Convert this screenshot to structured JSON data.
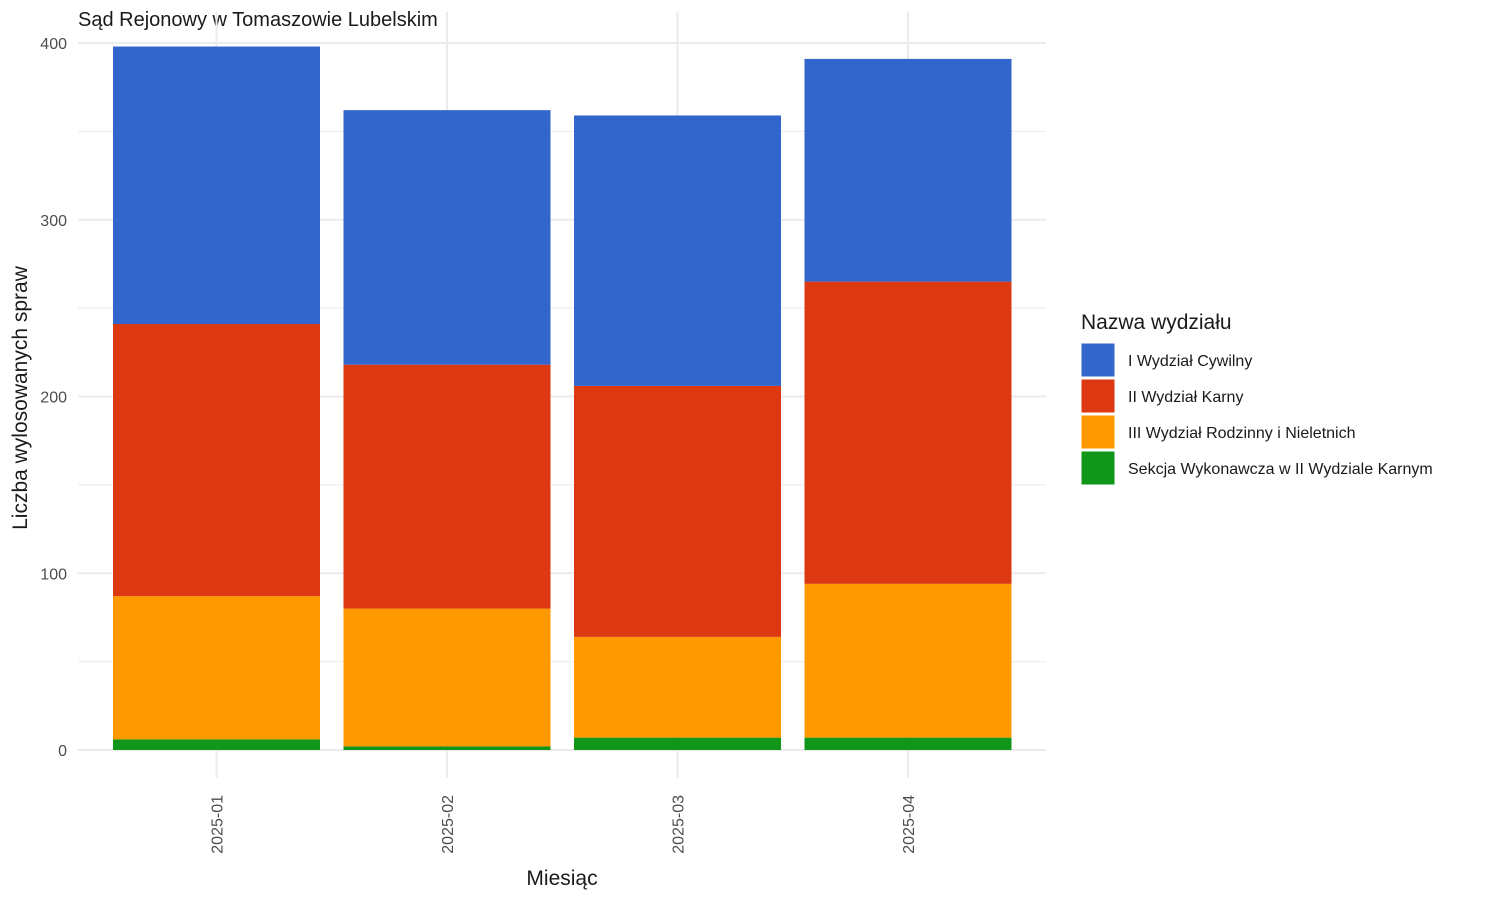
{
  "chart_data": {
    "type": "bar",
    "stacked": true,
    "title": "Sąd Rejonowy w Tomaszowie Lubelskim",
    "xlabel": "Miesiąc",
    "ylabel": "Liczba wylosowanych spraw",
    "ylim": [
      0,
      400
    ],
    "yticks": [
      0,
      100,
      200,
      300,
      400
    ],
    "grid": true,
    "legend_title": "Nazwa wydziału",
    "legend_position": "right",
    "categories": [
      "2025-01",
      "2025-02",
      "2025-03",
      "2025-04"
    ],
    "series": [
      {
        "name": "Sekcja Wykonawcza w II Wydziale Karnym",
        "color": "#109618",
        "values": [
          6,
          2,
          7,
          7
        ]
      },
      {
        "name": "III Wydział Rodzinny i Nieletnich",
        "color": "#FF9900",
        "values": [
          81,
          78,
          57,
          87
        ]
      },
      {
        "name": "II Wydział Karny",
        "color": "#DC3912",
        "values": [
          154,
          138,
          142,
          171
        ]
      },
      {
        "name": "I Wydział Cywilny",
        "color": "#3366CC",
        "values": [
          157,
          144,
          153,
          126
        ]
      }
    ],
    "legend_order": [
      "I Wydział Cywilny",
      "II Wydział Karny",
      "III Wydział Rodzinny i Nieletnich",
      "Sekcja Wykonawcza w II Wydziale Karnym"
    ]
  }
}
